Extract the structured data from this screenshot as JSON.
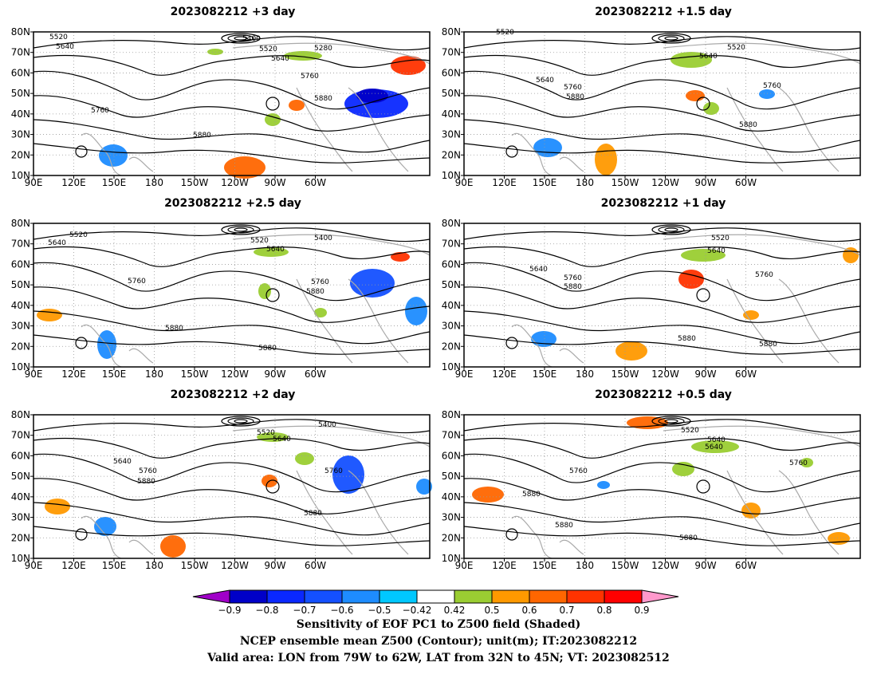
{
  "panels": [
    {
      "title": "2023082212 +3 day",
      "contour_labels": [
        "5520",
        "5640",
        "5400",
        "5520",
        "5640",
        "5280",
        "5760",
        "5880",
        "5760",
        "5880"
      ]
    },
    {
      "title": "2023082212 +1.5 day",
      "contour_labels": [
        "5520",
        "5520",
        "5640",
        "5640",
        "5760",
        "5880",
        "5760",
        "5880"
      ]
    },
    {
      "title": "2023082212 +2.5 day",
      "contour_labels": [
        "5520",
        "5640",
        "5520",
        "5400",
        "5640",
        "5760",
        "5760",
        "5880",
        "5880",
        "5880"
      ]
    },
    {
      "title": "2023082212 +1 day",
      "contour_labels": [
        "5520",
        "5640",
        "5640",
        "5760",
        "5880",
        "5760",
        "5880",
        "5880"
      ]
    },
    {
      "title": "2023082212 +2 day",
      "contour_labels": [
        "5520",
        "5400",
        "5640",
        "5640",
        "5760",
        "5880",
        "5760",
        "5880"
      ]
    },
    {
      "title": "2023082212 +0.5 day",
      "contour_labels": [
        "5520",
        "5640",
        "5640",
        "5760",
        "5760",
        "5880",
        "5880",
        "5880"
      ]
    }
  ],
  "axes": {
    "lat_labels": [
      "80N",
      "70N",
      "60N",
      "50N",
      "40N",
      "30N",
      "20N",
      "10N"
    ],
    "lon_labels": [
      "90E",
      "120E",
      "150E",
      "180",
      "150W",
      "120W",
      "90W",
      "60W"
    ]
  },
  "colorbar": {
    "ticks": [
      "−0.9",
      "−0.8",
      "−0.7",
      "−0.6",
      "−0.5",
      "−0.42",
      "0.42",
      "0.5",
      "0.6",
      "0.7",
      "0.8",
      "0.9"
    ],
    "colors": [
      "#a000c8",
      "#0000c8",
      "#0a28ff",
      "#1450ff",
      "#1e8cff",
      "#00c8ff",
      "#ffffff",
      "#9acd32",
      "#ff9900",
      "#ff6600",
      "#ff3300",
      "#ff0000",
      "#ff99cc"
    ]
  },
  "footer": {
    "line1": "Sensitivity of EOF PC1 to Z500 field (Shaded)",
    "line2": "NCEP ensemble mean Z500 (Contour); unit(m); IT:2023082212",
    "line3": "Valid area: LON from 79W to 62W, LAT from 32N to 45N; VT: 2023082512"
  }
}
